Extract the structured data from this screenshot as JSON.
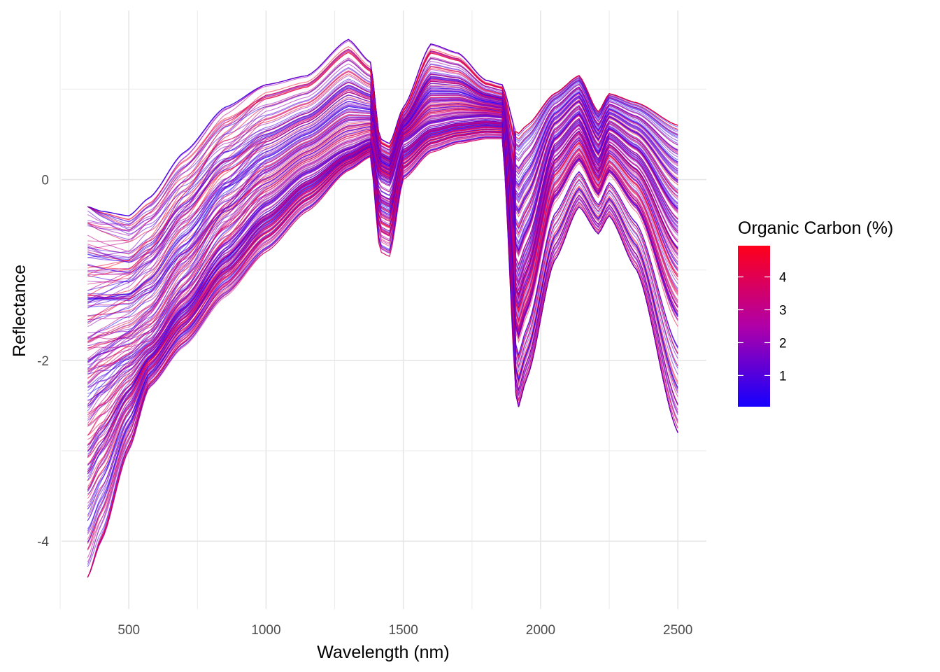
{
  "chart_data": {
    "type": "line",
    "title": "",
    "xlabel": "Wavelength (nm)",
    "ylabel": "Reflectance",
    "xlim": [
      255,
      2604
    ],
    "ylim": [
      -4.75,
      1.87
    ],
    "x_ticks": [
      500,
      1000,
      1500,
      2000,
      2500
    ],
    "x_tick_labels": [
      "500",
      "1000",
      "1500",
      "2000",
      "2500"
    ],
    "x_minor_grid": [
      250,
      750,
      1250,
      1750,
      2250
    ],
    "y_ticks": [
      0,
      -2,
      -4
    ],
    "y_tick_labels": [
      "0",
      "-2",
      "-4"
    ],
    "y_minor_grid": [
      1,
      -1,
      -3
    ],
    "grid": true,
    "x_range": [
      350,
      2500
    ],
    "series_count": 220,
    "color_variable": "Organic Carbon (%)",
    "legend": {
      "title": "Organic Carbon (%)",
      "placement": "right",
      "type": "colorbar",
      "range": [
        0.05,
        4.95
      ],
      "ticks": [
        4,
        3,
        2,
        1
      ],
      "tick_labels": [
        "4",
        "3",
        "2",
        "1"
      ],
      "low_color": "#1500ff",
      "mid_color": "#b000a8",
      "high_color": "#ff001a"
    },
    "key_absorption_features_nm": [
      1415,
      1915,
      2210
    ],
    "representative_profile": {
      "wavelengths": [
        350,
        400,
        500,
        575,
        700,
        850,
        1000,
        1150,
        1300,
        1380,
        1415,
        1450,
        1500,
        1600,
        1700,
        1800,
        1860,
        1915,
        1950,
        2050,
        2140,
        2210,
        2250,
        2350,
        2500
      ],
      "reflectance_median": [
        -2.2,
        -2.1,
        -1.95,
        -1.8,
        -1.3,
        -0.7,
        -0.25,
        0.1,
        0.35,
        0.45,
        0.05,
        0.0,
        0.45,
        0.65,
        0.7,
        0.72,
        0.7,
        -1.2,
        -0.9,
        0.3,
        0.6,
        0.15,
        0.45,
        0.2,
        -0.6
      ],
      "reflectance_high": [
        -0.3,
        -0.35,
        -0.4,
        -0.2,
        0.3,
        0.8,
        1.05,
        1.15,
        1.55,
        1.3,
        0.45,
        0.4,
        0.8,
        1.5,
        1.4,
        1.1,
        1.05,
        0.5,
        0.6,
        0.95,
        1.15,
        0.75,
        0.95,
        0.85,
        0.6
      ],
      "reflectance_low": [
        -4.4,
        -4.0,
        -3.0,
        -2.3,
        -1.85,
        -1.3,
        -0.8,
        -0.35,
        0.1,
        0.25,
        -0.8,
        -0.85,
        0.0,
        0.3,
        0.4,
        0.45,
        0.45,
        -2.55,
        -2.2,
        -0.9,
        -0.3,
        -0.6,
        -0.4,
        -1.0,
        -2.8
      ]
    }
  }
}
